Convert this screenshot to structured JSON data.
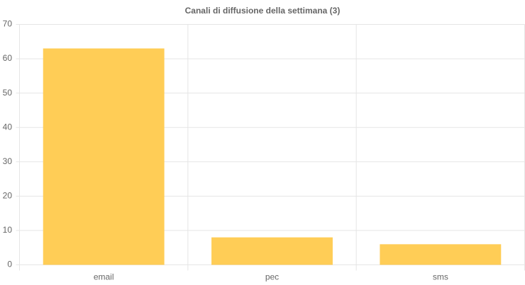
{
  "chart_data": {
    "type": "bar",
    "title": "Canali di diffusione della settimana (3)",
    "categories": [
      "email",
      "pec",
      "sms"
    ],
    "values": [
      63,
      8,
      6
    ],
    "color": "#ffcd56",
    "ylim": [
      0,
      70
    ],
    "yticks": [
      0,
      10,
      20,
      30,
      40,
      50,
      60,
      70
    ],
    "grid": true
  }
}
